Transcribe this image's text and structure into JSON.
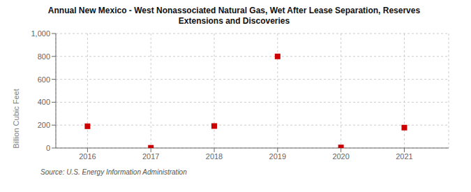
{
  "chart_data": {
    "type": "scatter",
    "title": "Annual New Mexico - West Nonassociated Natural Gas, Wet After Lease Separation, Reserves\nExtensions and Discoveries",
    "ylabel": "Billion Cubic Feet",
    "annotations": [
      "Source: U.S. Energy Information Administration"
    ],
    "x": [
      2016,
      2017,
      2018,
      2019,
      2020,
      2021
    ],
    "values": [
      190,
      2,
      192,
      800,
      5,
      178
    ],
    "xlim": [
      2015.5,
      2021.7
    ],
    "xticks": [
      2016,
      2017,
      2018,
      2019,
      2020,
      2021
    ],
    "ylim": [
      0,
      1000
    ],
    "yticks": [
      0,
      200,
      400,
      600,
      800,
      {
        "value": 1000,
        "label": "1,000"
      }
    ],
    "color": "#cc0000",
    "marker": "square",
    "grid": true
  }
}
